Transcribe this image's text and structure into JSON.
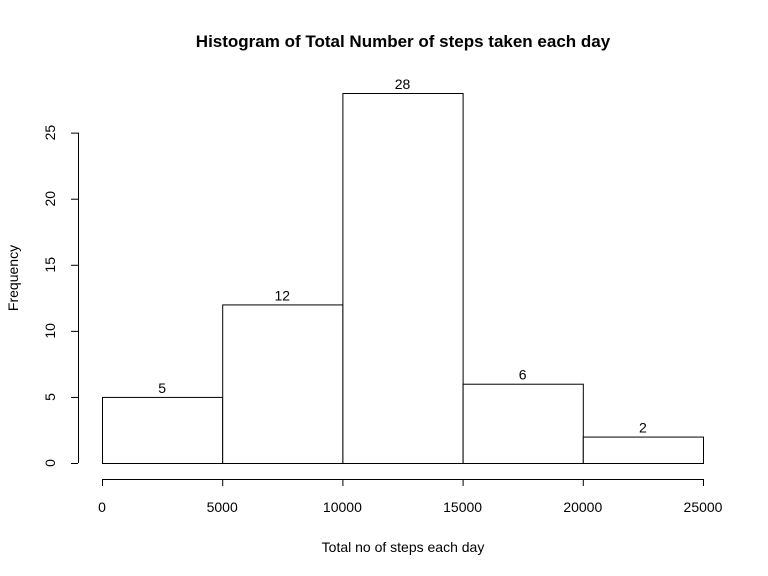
{
  "chart_data": {
    "type": "bar",
    "title": "Histogram of Total Number of steps taken each day",
    "xlabel": "Total no of steps each day",
    "ylabel": "Frequency",
    "bins": [
      {
        "start": 0,
        "end": 5000,
        "count": 5
      },
      {
        "start": 5000,
        "end": 10000,
        "count": 12
      },
      {
        "start": 10000,
        "end": 15000,
        "count": 28
      },
      {
        "start": 15000,
        "end": 20000,
        "count": 6
      },
      {
        "start": 20000,
        "end": 25000,
        "count": 2
      }
    ],
    "data_labels": [
      "5",
      "12",
      "28",
      "6",
      "2"
    ],
    "xticks": [
      "0",
      "5000",
      "10000",
      "15000",
      "20000",
      "25000"
    ],
    "yticks": [
      "0",
      "5",
      "10",
      "15",
      "20",
      "25"
    ],
    "xlim": [
      0,
      25000
    ],
    "ylim": [
      0,
      28
    ],
    "grid": false,
    "colors": {
      "bar_fill": "#ffffff",
      "bar_stroke": "#000000",
      "text": "#000000"
    }
  }
}
